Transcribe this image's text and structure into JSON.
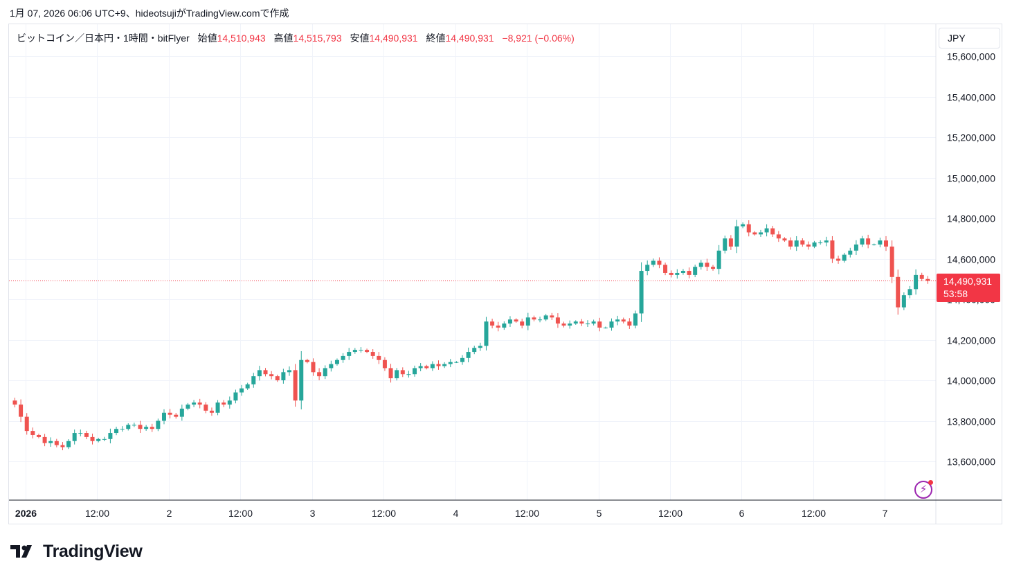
{
  "caption": "1月 07, 2026 06:06 UTC+9、hideotsujiがTradingView.comで作成",
  "legend": {
    "symbol": "ビットコイン／日本円・1時間・bitFlyer",
    "open_label": "始値",
    "open": "14,510,943",
    "high_label": "高値",
    "high": "14,515,793",
    "low_label": "安値",
    "low": "14,490,931",
    "close_label": "終値",
    "close": "14,490,931",
    "change": "−8,921 (−0.06%)"
  },
  "currency": "JPY",
  "last_price_label": "14,490,931",
  "countdown": "53:58",
  "brand": "TradingView",
  "colors": {
    "up": "#26a69a",
    "down": "#ef5350",
    "grid": "#f0f3fa",
    "price_line": "#f23645"
  },
  "icons": {
    "alert": "lightning-bolt-icon",
    "logo": "tradingview-logo-icon"
  },
  "chart_data": {
    "type": "candlestick",
    "title": "",
    "xlabel": "",
    "ylabel": "",
    "interval": "1h",
    "ylim": [
      13450000,
      15680000
    ],
    "y_ticks": [
      13600000,
      13800000,
      14000000,
      14200000,
      14400000,
      14600000,
      14800000,
      15000000,
      15200000,
      15400000,
      15600000
    ],
    "y_tick_labels": [
      "13,600,000",
      "13,800,000",
      "14,000,000",
      "14,200,000",
      "14,400,000",
      "14,600,000",
      "14,800,000",
      "15,000,000",
      "15,200,000",
      "15,400,000",
      "15,600,000"
    ],
    "x_ticks": [
      {
        "label": "2026",
        "hour": 0,
        "bold": true
      },
      {
        "label": "12:00",
        "hour": 12
      },
      {
        "label": "2",
        "hour": 24
      },
      {
        "label": "12:00",
        "hour": 36
      },
      {
        "label": "3",
        "hour": 48
      },
      {
        "label": "12:00",
        "hour": 60
      },
      {
        "label": "4",
        "hour": 72
      },
      {
        "label": "12:00",
        "hour": 84
      },
      {
        "label": "5",
        "hour": 96
      },
      {
        "label": "12:00",
        "hour": 108
      },
      {
        "label": "6",
        "hour": 120
      },
      {
        "label": "12:00",
        "hour": 132
      },
      {
        "label": "7",
        "hour": 144
      }
    ],
    "last_price": 14490931,
    "close_series_start": "2026-01-01 00:00",
    "close_series": [
      13900000,
      13880000,
      13820000,
      13750000,
      13730000,
      13720000,
      13690000,
      13700000,
      13680000,
      13670000,
      13700000,
      13740000,
      13740000,
      13720000,
      13700000,
      13710000,
      13710000,
      13740000,
      13760000,
      13760000,
      13780000,
      13780000,
      13760000,
      13770000,
      13760000,
      13800000,
      13840000,
      13830000,
      13820000,
      13860000,
      13880000,
      13890000,
      13880000,
      13850000,
      13840000,
      13890000,
      13880000,
      13900000,
      13940000,
      13960000,
      13980000,
      14020000,
      14050000,
      14030000,
      14020000,
      14000000,
      14040000,
      14050000,
      13900000,
      14100000,
      14090000,
      14040000,
      14020000,
      14060000,
      14080000,
      14100000,
      14120000,
      14140000,
      14150000,
      14150000,
      14140000,
      14120000,
      14100000,
      14060000,
      14010000,
      14050000,
      14030000,
      14030000,
      14060000,
      14070000,
      14060000,
      14080000,
      14070000,
      14080000,
      14090000,
      14090000,
      14110000,
      14140000,
      14160000,
      14170000,
      14290000,
      14270000,
      14260000,
      14280000,
      14300000,
      14290000,
      14270000,
      14310000,
      14300000,
      14300000,
      14320000,
      14310000,
      14280000,
      14270000,
      14280000,
      14290000,
      14280000,
      14280000,
      14290000,
      14260000,
      14260000,
      14290000,
      14300000,
      14290000,
      14270000,
      14330000,
      14540000,
      14570000,
      14590000,
      14570000,
      14530000,
      14520000,
      14530000,
      14540000,
      14520000,
      14560000,
      14580000,
      14560000,
      14550000,
      14640000,
      14700000,
      14660000,
      14760000,
      14770000,
      14730000,
      14720000,
      14730000,
      14750000,
      14720000,
      14700000,
      14690000,
      14660000,
      14690000,
      14670000,
      14660000,
      14680000,
      14680000,
      14690000,
      14600000,
      14590000,
      14620000,
      14640000,
      14670000,
      14700000,
      14670000,
      14670000,
      14690000,
      14660000,
      14510000,
      14360000,
      14420000,
      14450000,
      14520000,
      14500000,
      14490931
    ]
  }
}
